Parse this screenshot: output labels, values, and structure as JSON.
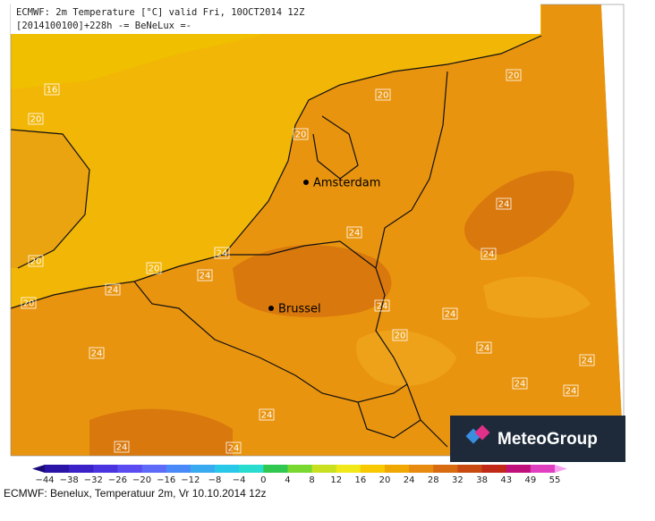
{
  "header": {
    "line1": "ECMWF: 2m Temperature [°C] valid Fri, 10OCT2014 12Z",
    "line2": "[2014100100]+228h -= BeNeLux =-"
  },
  "contour_labels": [
    "16",
    "20",
    "20",
    "20",
    "20",
    "24",
    "24",
    "24",
    "24",
    "20",
    "20",
    "24",
    "24",
    "20",
    "24",
    "24",
    "20",
    "24",
    "24",
    "24",
    "24",
    "24",
    "24",
    "24",
    "24"
  ],
  "cities": [
    "Amsterdam",
    "Brussel"
  ],
  "logo": "MeteoGroup",
  "colorbar": {
    "labels": [
      "−44",
      "−38",
      "−32",
      "−26",
      "−20",
      "−16",
      "−12",
      "−8",
      "−4",
      "0",
      "4",
      "8",
      "12",
      "16",
      "20",
      "24",
      "28",
      "32",
      "38",
      "43",
      "49",
      "55"
    ],
    "colors": [
      "#1a0a78",
      "#2a14a8",
      "#3a22c8",
      "#4a34e0",
      "#5a4cf0",
      "#5e6af8",
      "#4a8af8",
      "#3aaaf0",
      "#2ac8e8",
      "#28dcd0",
      "#30c850",
      "#78d830",
      "#c8e020",
      "#f0e818",
      "#f8c800",
      "#f0a800",
      "#e88a10",
      "#d86a10",
      "#c84a10",
      "#c02818",
      "#c0107a",
      "#e040c0",
      "#f8a0f0"
    ]
  },
  "caption": "ECMWF: Benelux, Temperatuur 2m, Vr 10.10.2014 12z"
}
